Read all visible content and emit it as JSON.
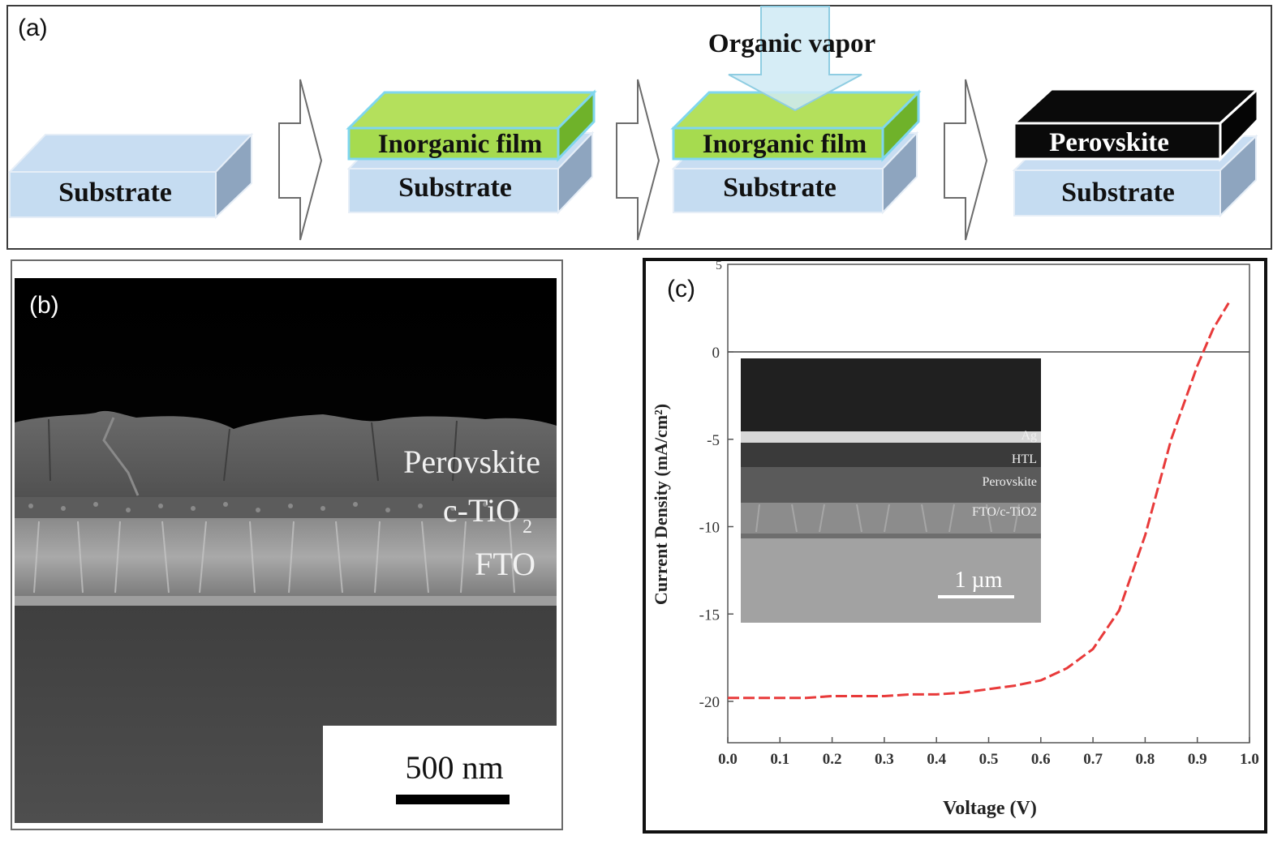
{
  "panel_a": {
    "letter": "(a)",
    "steps": [
      {
        "substrate": "Substrate"
      },
      {
        "film": "Inorganic film",
        "substrate": "Substrate"
      },
      {
        "film": "Inorganic film",
        "substrate": "Substrate",
        "vapor": "Organic vapor"
      },
      {
        "film": "Perovskite",
        "substrate": "Substrate"
      }
    ],
    "colors": {
      "substrate_face": "#c5dcf1",
      "substrate_side": "#8fa5bd",
      "film_green": "#aee05a",
      "film_edge": "#8ad8ef",
      "perovskite": "#0a0a0a",
      "vapor": "#cfeaf4"
    }
  },
  "panel_b": {
    "letter": "(b)",
    "labels": {
      "perovskite": "Perovskite",
      "tio2_main": "c-TiO",
      "tio2_sub": "2",
      "fto": "FTO"
    },
    "scale_bar": "500 nm"
  },
  "panel_c": {
    "letter": "(c)",
    "inset": {
      "layers": [
        "Ag",
        "HTL",
        "Perovskite",
        "FTO/c-TiO2"
      ],
      "scale_bar": "1 µm"
    }
  },
  "chart_data": {
    "type": "line",
    "title": "",
    "xlabel": "Voltage (V)",
    "ylabel": "Current Density (mA/cm²)",
    "xlim": [
      0.0,
      1.0
    ],
    "ylim": [
      -22.5,
      5
    ],
    "xticks": [
      "0.0",
      "0.1",
      "0.2",
      "0.3",
      "0.4",
      "0.5",
      "0.6",
      "0.7",
      "0.8",
      "0.9",
      "1.0"
    ],
    "yticks": [
      "0",
      "-5",
      "-10",
      "-15",
      "-20"
    ],
    "y_top_partial_tick": "5",
    "zero_line": true,
    "series": [
      {
        "color": "#e83a3a",
        "dashed": true,
        "x": [
          0.0,
          0.05,
          0.1,
          0.15,
          0.2,
          0.25,
          0.3,
          0.35,
          0.4,
          0.45,
          0.5,
          0.55,
          0.6,
          0.65,
          0.7,
          0.75,
          0.8,
          0.85,
          0.9,
          0.93,
          0.96
        ],
        "y": [
          -19.8,
          -19.8,
          -19.8,
          -19.8,
          -19.7,
          -19.7,
          -19.7,
          -19.6,
          -19.6,
          -19.5,
          -19.3,
          -19.1,
          -18.8,
          -18.1,
          -17.0,
          -14.8,
          -10.5,
          -5.0,
          -0.8,
          1.3,
          2.8
        ]
      }
    ]
  }
}
